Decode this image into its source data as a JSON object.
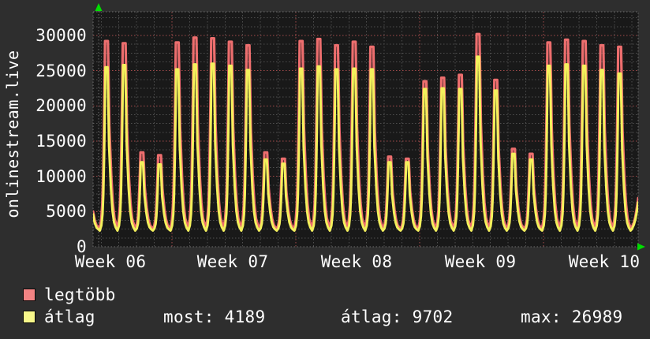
{
  "title": {
    "text": "onlinestream.live"
  },
  "y_axis": {
    "tick_labels": [
      "0",
      "5000",
      "10000",
      "15000",
      "20000",
      "25000",
      "30000"
    ],
    "tick_values": [
      0,
      5000,
      10000,
      15000,
      20000,
      25000,
      30000
    ]
  },
  "x_axis": {
    "week_labels": [
      "Week 06",
      "Week 07",
      "Week 08",
      "Week 09",
      "Week 10"
    ]
  },
  "legend": {
    "items": [
      {
        "label": "legtöbb",
        "color": "#f28383"
      },
      {
        "label": "átlag",
        "color": "#f7f78a"
      }
    ]
  },
  "stats": {
    "most": {
      "label": "most:",
      "value": "4189"
    },
    "atlag": {
      "label": "átlag:",
      "value": "9702"
    },
    "max": {
      "label": "max:",
      "value": "26989"
    }
  },
  "colors": {
    "background": "#2e2e2e",
    "plot_background": "#191919",
    "minor_grid": "#4f4f4f",
    "major_grid_red": "#a34b4b",
    "series_max_red": "#ed6e6e",
    "series_avg_yellow": "#f4f05c",
    "axis_arrow_green": "#00dd00",
    "text": "#ffffff"
  },
  "chart_data": {
    "type": "line",
    "title": "onlinestream.live",
    "ylabel": "onlinestream.live",
    "ylim": [
      0,
      33350
    ],
    "y_ticks": [
      0,
      5000,
      10000,
      15000,
      20000,
      25000,
      30000
    ],
    "x_tick_labels": [
      "Week 06",
      "Week 07",
      "Week 08",
      "Week 09",
      "Week 10"
    ],
    "grid": "dotted; gray minor lines, red major lines (every 5000 and at week boundaries)",
    "legend_position": "bottom-left",
    "description": "Viewer count over 5 weeks; one spike per day (evening peak), overnight lows ~2300. Weekend peaks are low (~12000-14000), weekdays high (~29000), week 09 weekdays medium (~23000-24500) with one highest day.",
    "baseline_overnight_low": 2300,
    "current": 4189,
    "average": 9702,
    "maximum": 26989,
    "series": [
      {
        "name": "legtöbb",
        "role": "daily maximum viewers",
        "color": "#ed6e6e",
        "daily_peaks": [
          29200,
          28900,
          13400,
          13000,
          29000,
          29700,
          29600,
          29100,
          28600,
          13400,
          12500,
          29200,
          29500,
          28600,
          29100,
          28400,
          12800,
          12500,
          23500,
          24000,
          24400,
          30200,
          23700,
          13900,
          13200,
          29000,
          29400,
          29200,
          28600,
          28400
        ]
      },
      {
        "name": "átlag",
        "role": "daily average viewers",
        "color": "#f4f05c",
        "daily_peaks": [
          25500,
          25800,
          12000,
          11700,
          25200,
          25900,
          26000,
          25700,
          25100,
          12400,
          11800,
          25300,
          25600,
          25200,
          25300,
          25200,
          12000,
          12000,
          22400,
          22500,
          22400,
          26989,
          22200,
          13200,
          12400,
          25700,
          25900,
          25700,
          25100,
          24600
        ]
      }
    ]
  }
}
